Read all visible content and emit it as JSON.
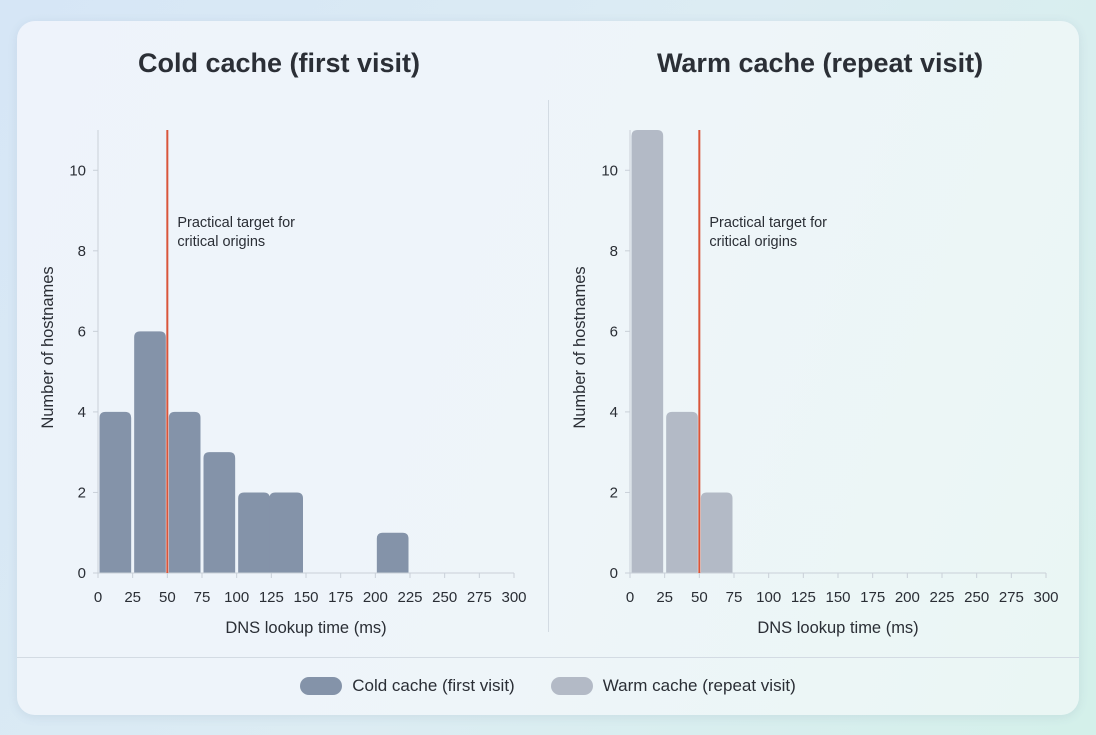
{
  "panels": [
    {
      "title": "Cold cache (first visit)"
    },
    {
      "title": "Warm cache (repeat visit)"
    }
  ],
  "legend": [
    {
      "label": "Cold cache (first visit)",
      "color": "#8493a9"
    },
    {
      "label": "Warm cache (repeat visit)",
      "color": "#b3bac6"
    }
  ],
  "chart_data": [
    {
      "type": "bar",
      "title": "Cold cache (first visit)",
      "xlabel": "DNS lookup time (ms)",
      "ylabel": "Number of hostnames",
      "bins": [
        [
          0,
          25
        ],
        [
          25,
          50
        ],
        [
          50,
          75
        ],
        [
          75,
          100
        ],
        [
          100,
          125
        ],
        [
          125,
          150
        ],
        [
          150,
          175
        ],
        [
          175,
          200
        ],
        [
          200,
          225
        ],
        [
          225,
          250
        ],
        [
          250,
          275
        ],
        [
          275,
          300
        ]
      ],
      "values": [
        4,
        6,
        4,
        3,
        2,
        2,
        0,
        0,
        1,
        0,
        0,
        0
      ],
      "xlim": [
        0,
        300
      ],
      "ylim": [
        0,
        11
      ],
      "xticks": [
        0,
        25,
        50,
        75,
        100,
        125,
        150,
        175,
        200,
        225,
        250,
        275,
        300
      ],
      "yticks": [
        0,
        2,
        4,
        6,
        8,
        10
      ],
      "bar_color": "#8493a9",
      "reference_line": {
        "x": 50,
        "label": "Practical target for critical origins",
        "color": "#d9553a"
      }
    },
    {
      "type": "bar",
      "title": "Warm cache (repeat visit)",
      "xlabel": "DNS lookup time (ms)",
      "ylabel": "Number of hostnames",
      "bins": [
        [
          0,
          25
        ],
        [
          25,
          50
        ],
        [
          50,
          75
        ],
        [
          75,
          100
        ],
        [
          100,
          125
        ],
        [
          125,
          150
        ],
        [
          150,
          175
        ],
        [
          175,
          200
        ],
        [
          200,
          225
        ],
        [
          225,
          250
        ],
        [
          250,
          275
        ],
        [
          275,
          300
        ]
      ],
      "values": [
        11,
        4,
        2,
        0,
        0,
        0,
        0,
        0,
        0,
        0,
        0,
        0
      ],
      "xlim": [
        0,
        300
      ],
      "ylim": [
        0,
        11
      ],
      "xticks": [
        0,
        25,
        50,
        75,
        100,
        125,
        150,
        175,
        200,
        225,
        250,
        275,
        300
      ],
      "yticks": [
        0,
        2,
        4,
        6,
        8,
        10
      ],
      "bar_color": "#b3bac6",
      "reference_line": {
        "x": 50,
        "label": "Practical target for critical origins",
        "color": "#d9553a"
      }
    }
  ]
}
